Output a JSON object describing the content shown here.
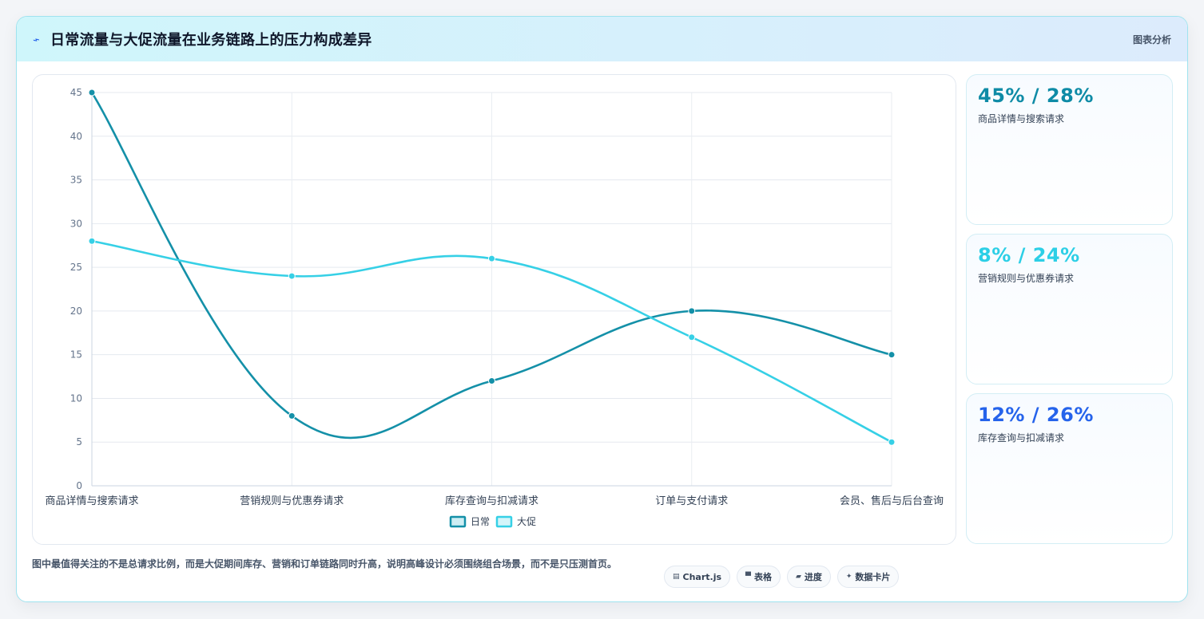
{
  "header": {
    "title": "日常流量与大促流量在业务链路上的压力构成差异",
    "tag": "图表分析",
    "icon": "bolt-icon"
  },
  "stats": [
    {
      "value": "45% / 28%",
      "label": "商品详情与搜索请求",
      "color": "#0e8ba6"
    },
    {
      "value": "8% / 24%",
      "label": "营销规则与优惠券请求",
      "color": "#2ccfe6"
    },
    {
      "value": "12% / 26%",
      "label": "库存查询与扣减请求",
      "color": "#2563eb"
    }
  ],
  "note": "图中最值得关注的不是总请求比例，而是大促期间库存、营销和订单链路同时升高，说明高峰设计必须围绕组合场景，而不是只压测首页。",
  "pills": [
    {
      "icon": "chart-icon",
      "glyph": "▤",
      "label": "Chart.js"
    },
    {
      "icon": "table-icon",
      "glyph": "▀",
      "label": "表格"
    },
    {
      "icon": "progress-icon",
      "glyph": "▰",
      "label": "进度"
    },
    {
      "icon": "sparkle-icon",
      "glyph": "✦",
      "label": "数据卡片"
    }
  ],
  "chart_data": {
    "type": "line",
    "categories": [
      "商品详情与搜索请求",
      "营销规则与优惠券请求",
      "库存查询与扣减请求",
      "订单与支付请求",
      "会员、售后与后台查询"
    ],
    "series": [
      {
        "name": "日常",
        "values": [
          45,
          8,
          12,
          20,
          15
        ],
        "color": "#1490a8"
      },
      {
        "name": "大促",
        "values": [
          28,
          24,
          26,
          17,
          5
        ],
        "color": "#36d0e6"
      }
    ],
    "ylim": [
      0,
      45
    ],
    "yticks": [
      0,
      5,
      10,
      15,
      20,
      25,
      30,
      35,
      40,
      45
    ],
    "grid": true,
    "legend": "bottom"
  }
}
